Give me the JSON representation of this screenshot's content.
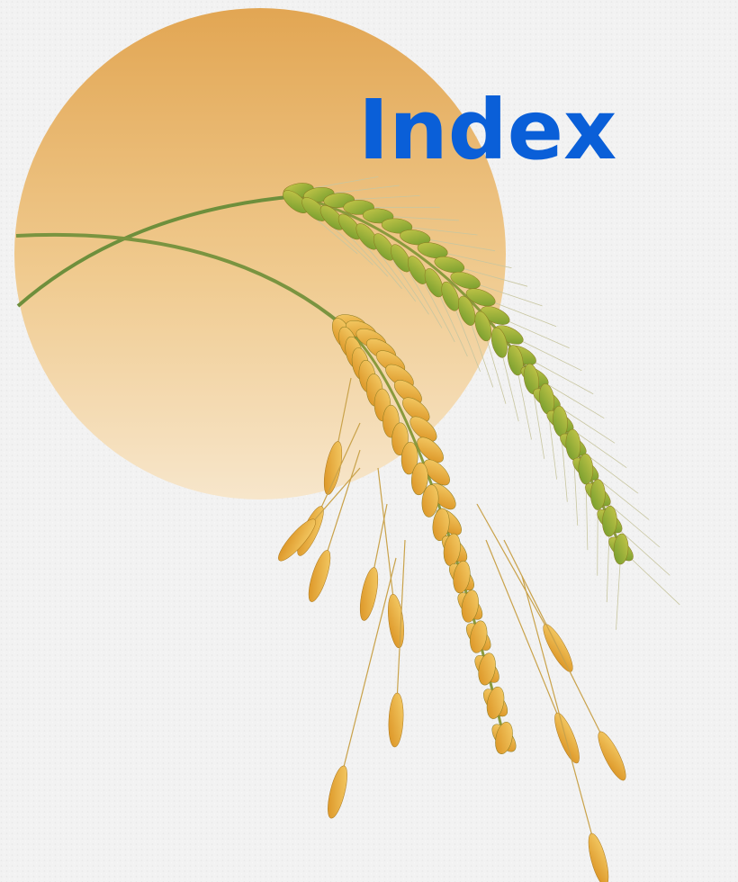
{
  "title": "Index"
}
